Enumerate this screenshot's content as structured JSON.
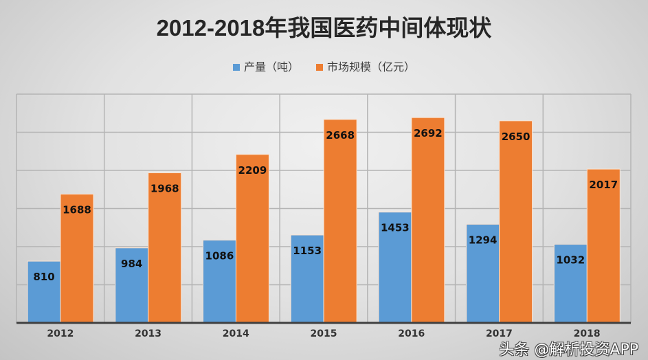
{
  "chart_data": {
    "type": "bar",
    "title": "2012-2018年我国医药中间体现状",
    "categories": [
      "2012",
      "2013",
      "2014",
      "2015",
      "2016",
      "2017",
      "2018"
    ],
    "series": [
      {
        "name": "产量（吨）",
        "color": "#5b9bd5",
        "values": [
          810,
          984,
          1086,
          1153,
          1453,
          1294,
          1032
        ]
      },
      {
        "name": "市场规模（亿元）",
        "color": "#ed7d31",
        "values": [
          1688,
          1968,
          2209,
          2668,
          2692,
          2650,
          2017
        ]
      }
    ],
    "xlabel": "",
    "ylabel": "",
    "ylim": [
      0,
      3000
    ],
    "ytick_step": 500,
    "grid": true,
    "legend": "top"
  },
  "watermark": "头条 @解析投资APP"
}
